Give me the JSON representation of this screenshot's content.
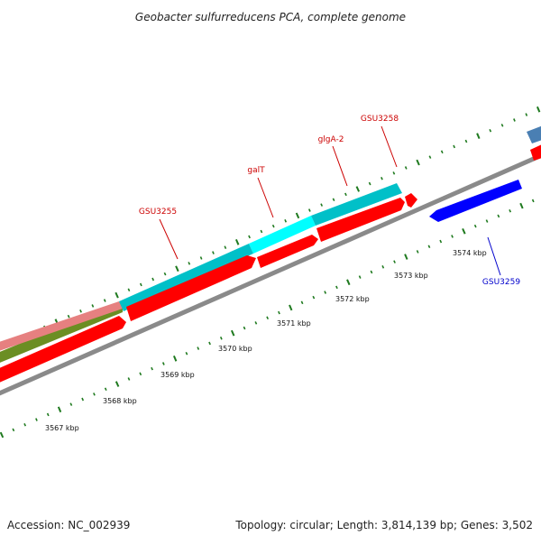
{
  "header": {
    "title": "Geobacter sulfurreducens PCA, complete genome"
  },
  "footer": {
    "accession": "Accession: NC_002939",
    "summary": "Topology: circular; Length: 3,814,139 bp; Genes: 3,502"
  },
  "map": {
    "colors": {
      "backbone": "#8c8c8c",
      "ticks": "#1f7a1f",
      "forward_cds": "#ff0000",
      "reverse_cds": "#0000ff",
      "orf": "#00c0c8",
      "orf_highlight": "#00ffff",
      "label_forward": "#cc0000",
      "label_reverse": "#0000cc",
      "pink": "#e27a7a",
      "olive": "#6b8e23",
      "steel": "#4a7fb3"
    },
    "scale_labels": [
      "3567 kbp",
      "3568 kbp",
      "3569 kbp",
      "3570 kbp",
      "3571 kbp",
      "3572 kbp",
      "3573 kbp",
      "3574 kbp"
    ],
    "gene_labels": [
      {
        "name": "GSU3255",
        "strand": "forward"
      },
      {
        "name": "galT",
        "strand": "forward"
      },
      {
        "name": "glgA-2",
        "strand": "forward"
      },
      {
        "name": "GSU3258",
        "strand": "forward"
      },
      {
        "name": "GSU3259",
        "strand": "reverse"
      }
    ]
  }
}
